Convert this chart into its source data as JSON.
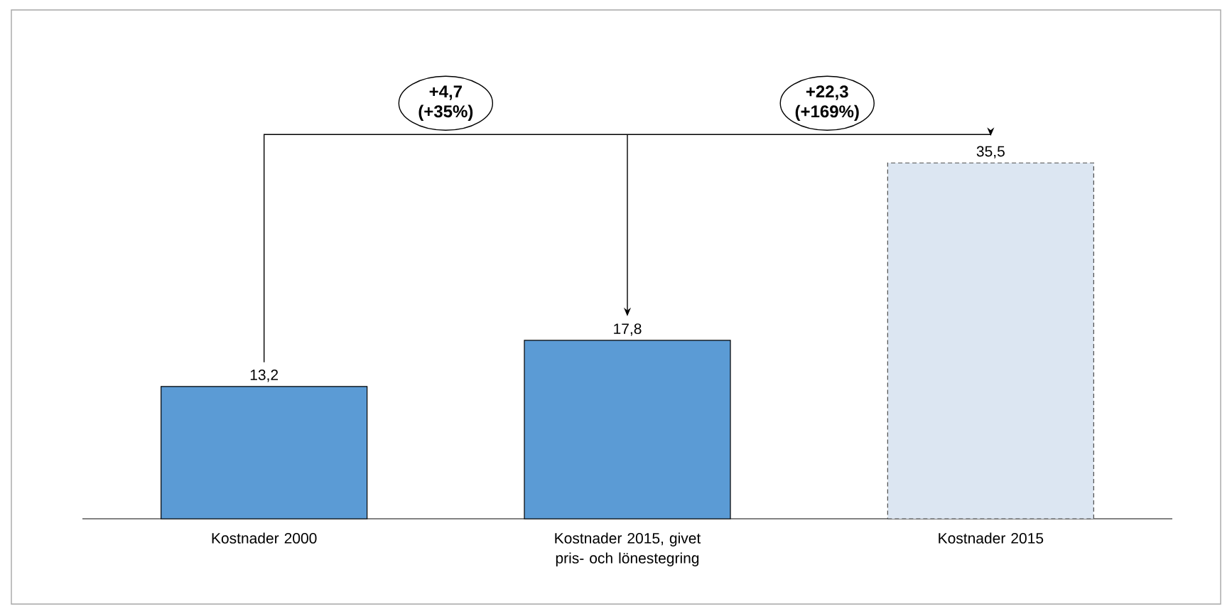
{
  "chart_data": {
    "type": "bar",
    "categories": [
      "Kostnader 2000",
      "Kostnader 2015, givet pris- och lönestegring",
      "Kostnader 2015"
    ],
    "series": [
      {
        "color": "#5b9bd5",
        "values": [
          13.2,
          17.8,
          null
        ],
        "value_labels": [
          "13,2",
          "17,8",
          null
        ]
      },
      {
        "color": "#dce6f2",
        "line_style": "dashed",
        "values": [
          null,
          null,
          35.5
        ],
        "value_labels": [
          null,
          null,
          "35,5"
        ]
      }
    ],
    "tick_labels": "x",
    "annotations": [
      "+4,7 (+35%)",
      "+22,3 (+169%)"
    ]
  }
}
